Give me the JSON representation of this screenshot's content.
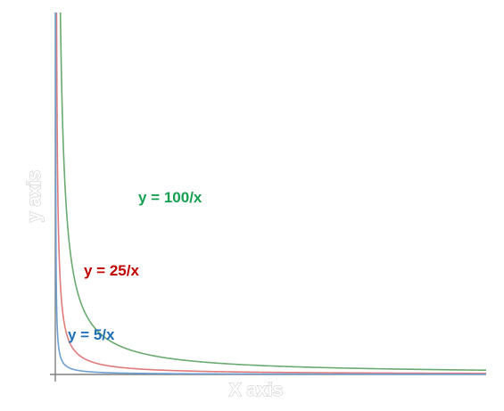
{
  "chart_data": {
    "type": "line",
    "xlabel": "X axis",
    "ylabel": "y axis",
    "xlim": [
      0,
      100
    ],
    "ylim": [
      0,
      85
    ],
    "grid": false,
    "legend": "none",
    "series": [
      {
        "name": "y = 100/x",
        "k": 100,
        "color": "#6aaa70",
        "label_color": "#14a050"
      },
      {
        "name": "y = 25/x",
        "k": 25,
        "color": "#e07b7b",
        "label_color": "#c00000"
      },
      {
        "name": "y = 5/x",
        "k": 5,
        "color": "#6f9fd0",
        "label_color": "#1f6fb5"
      }
    ]
  }
}
